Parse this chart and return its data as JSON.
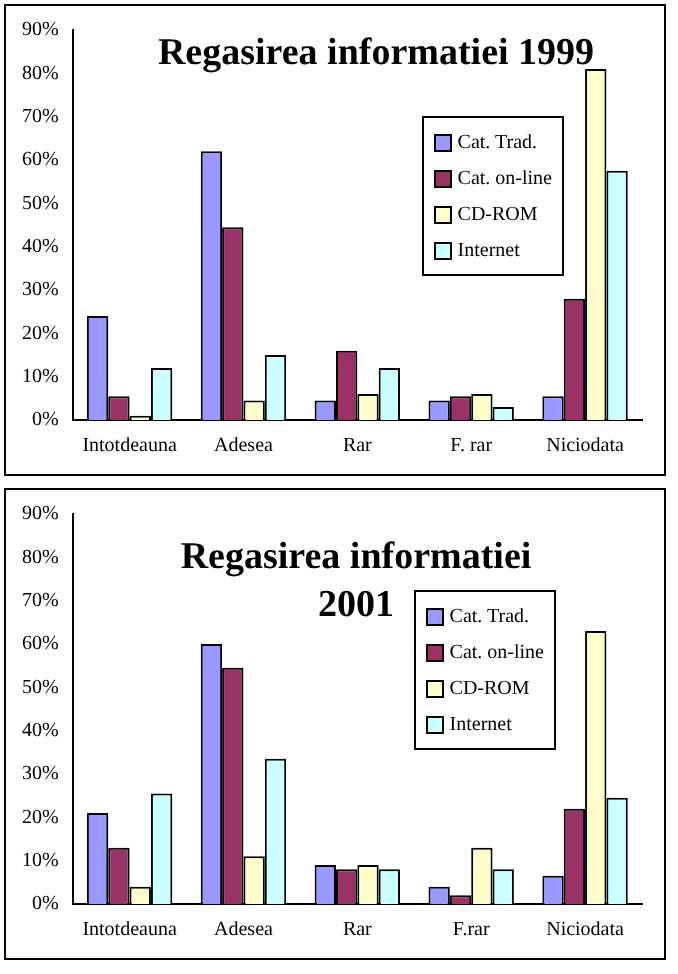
{
  "chart_data": [
    {
      "type": "bar",
      "title": "Regasirea informatiei 1999",
      "categories": [
        "Intotdeauna",
        "Adesea",
        "Rar",
        "F. rar",
        "Niciodata"
      ],
      "series": [
        {
          "name": "Cat. Trad.",
          "color": "#9999ff",
          "values": [
            24,
            62,
            4.5,
            4.5,
            5.5
          ]
        },
        {
          "name": "Cat. on-line",
          "color": "#993366",
          "values": [
            5.5,
            44.5,
            16,
            5.5,
            28
          ]
        },
        {
          "name": "CD-ROM",
          "color": "#ffffcc",
          "values": [
            1,
            4.5,
            6,
            6,
            81
          ]
        },
        {
          "name": "Internet",
          "color": "#ccffff",
          "values": [
            12,
            15,
            12,
            3,
            57.5
          ]
        }
      ],
      "ylim": [
        0,
        90
      ],
      "yticks": [
        {
          "value": 0,
          "label": "0%"
        },
        {
          "value": 10,
          "label": "10%"
        },
        {
          "value": 20,
          "label": "20%"
        },
        {
          "value": 30,
          "label": "30%"
        },
        {
          "value": 40,
          "label": "40%"
        },
        {
          "value": 50,
          "label": "50%"
        },
        {
          "value": 60,
          "label": "60%"
        },
        {
          "value": 70,
          "label": "70%"
        },
        {
          "value": 80,
          "label": "80%"
        },
        {
          "value": 90,
          "label": "90%"
        }
      ],
      "grid": false,
      "legend": "right"
    },
    {
      "type": "bar",
      "title": "Regasirea informatiei 2001",
      "categories": [
        "Intotdeauna",
        "Adesea",
        "Rar",
        "F.rar",
        "Niciodata"
      ],
      "series": [
        {
          "name": "Cat. Trad.",
          "color": "#9999ff",
          "values": [
            21,
            60,
            9,
            4,
            6.5
          ]
        },
        {
          "name": "Cat. on-line",
          "color": "#993366",
          "values": [
            13,
            54.5,
            8,
            2,
            22
          ]
        },
        {
          "name": "CD-ROM",
          "color": "#ffffcc",
          "values": [
            4,
            11,
            9,
            13,
            63
          ]
        },
        {
          "name": "Internet",
          "color": "#ccffff",
          "values": [
            25.5,
            33.5,
            8,
            8,
            24.5
          ]
        }
      ],
      "ylim": [
        0,
        90
      ],
      "yticks": [
        {
          "value": 0,
          "label": "0%"
        },
        {
          "value": 10,
          "label": "10%"
        },
        {
          "value": 20,
          "label": "20%"
        },
        {
          "value": 30,
          "label": "30%"
        },
        {
          "value": 40,
          "label": "40%"
        },
        {
          "value": 50,
          "label": "50%"
        },
        {
          "value": 60,
          "label": "60%"
        },
        {
          "value": 70,
          "label": "70%"
        },
        {
          "value": 80,
          "label": "80%"
        },
        {
          "value": 90,
          "label": "90%"
        }
      ],
      "grid": false,
      "legend": "top right"
    }
  ]
}
